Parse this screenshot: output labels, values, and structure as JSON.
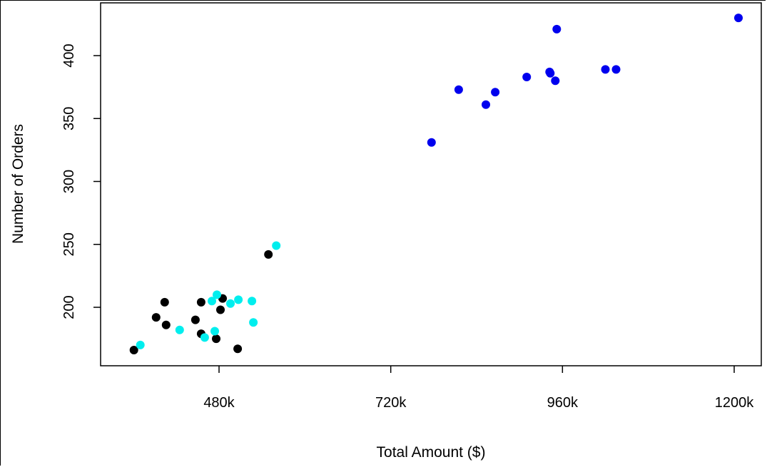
{
  "chart_data": {
    "type": "scatter",
    "title": "",
    "xlabel": "Total Amount ($)",
    "ylabel": "Number of Orders",
    "xlim": [
      330000,
      1215000
    ],
    "ylim": [
      160000,
      0
    ],
    "x_ticks": [
      {
        "value": 480000,
        "label": "480k"
      },
      {
        "value": 720000,
        "label": "720k"
      },
      {
        "value": 960000,
        "label": "960k"
      },
      {
        "value": 1200000,
        "label": "1200k"
      }
    ],
    "y_ticks": [
      {
        "value": 200,
        "label": "200"
      },
      {
        "value": 250,
        "label": "250"
      },
      {
        "value": 300,
        "label": "300"
      },
      {
        "value": 350,
        "label": "350"
      },
      {
        "value": 400,
        "label": "400"
      }
    ],
    "y_range": [
      150,
      437
    ],
    "grid": false,
    "legend": "none",
    "series": [
      {
        "color": "#0000ee",
        "points": [
          [
            777000,
            331
          ],
          [
            815000,
            373
          ],
          [
            853000,
            361
          ],
          [
            866000,
            371
          ],
          [
            910000,
            383
          ],
          [
            942000,
            387
          ],
          [
            943000,
            386
          ],
          [
            950000,
            380
          ],
          [
            952000,
            421
          ],
          [
            1020000,
            389
          ],
          [
            1035000,
            389
          ],
          [
            1206000,
            430
          ]
        ]
      },
      {
        "color": "#000000",
        "points": [
          [
            361000,
            166
          ],
          [
            392000,
            192
          ],
          [
            404000,
            204
          ],
          [
            406000,
            186
          ],
          [
            447000,
            190
          ],
          [
            455000,
            204
          ],
          [
            455000,
            179
          ],
          [
            476000,
            175
          ],
          [
            482000,
            198
          ],
          [
            485000,
            207
          ],
          [
            506000,
            167
          ],
          [
            549000,
            242
          ]
        ]
      },
      {
        "color": "#00eeee",
        "points": [
          [
            370000,
            170
          ],
          [
            425000,
            182
          ],
          [
            460000,
            176
          ],
          [
            470000,
            205
          ],
          [
            474000,
            181
          ],
          [
            477000,
            210
          ],
          [
            496000,
            203
          ],
          [
            507000,
            206
          ],
          [
            526000,
            205
          ],
          [
            528000,
            188
          ],
          [
            560000,
            249
          ]
        ]
      }
    ]
  }
}
